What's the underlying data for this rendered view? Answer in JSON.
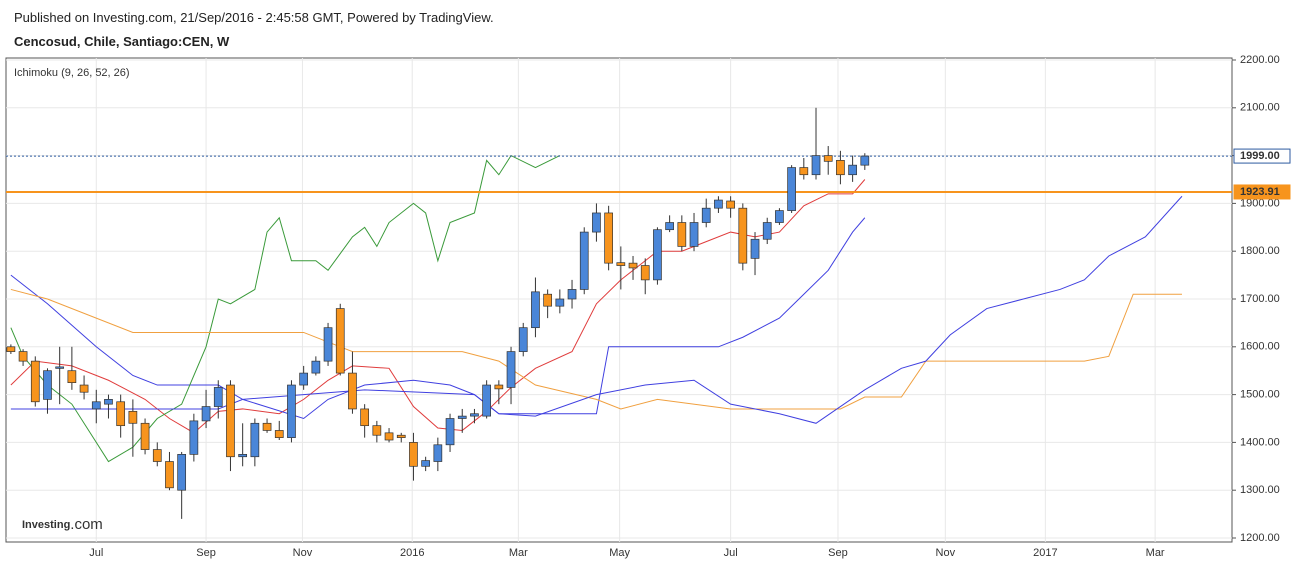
{
  "chart_data": {
    "type": "candlestick",
    "published": "Published on Investing.com, 21/Sep/2016 - 2:45:58 GMT, Powered by TradingView.",
    "title": "Cencosud, Chile, Santiago:CEN, W",
    "indicator": "Ichimoku (9, 26, 52, 26)",
    "logo": "Investing",
    "logo_suffix": ".com",
    "up_color": "#4a86d8",
    "down_color": "#f7941d",
    "grid": true,
    "xlim": [
      -0.4,
      100.1
    ],
    "xticks": [
      {
        "value": 7,
        "label": "Jul"
      },
      {
        "value": 16,
        "label": "Sep"
      },
      {
        "value": 23.9,
        "label": "Nov"
      },
      {
        "value": 32.9,
        "label": "2016"
      },
      {
        "value": 41.6,
        "label": "Mar"
      },
      {
        "value": 49.9,
        "label": "May"
      },
      {
        "value": 59,
        "label": "Jul"
      },
      {
        "value": 67.8,
        "label": "Sep"
      },
      {
        "value": 76.6,
        "label": "Nov"
      },
      {
        "value": 84.8,
        "label": "2017"
      },
      {
        "value": 93.8,
        "label": "Mar"
      }
    ],
    "ylim": [
      1200,
      2200
    ],
    "yticks": [
      {
        "value": 1200,
        "label": "1200.00"
      },
      {
        "value": 1300,
        "label": "1300.00"
      },
      {
        "value": 1400,
        "label": "1400.00"
      },
      {
        "value": 1500,
        "label": "1500.00"
      },
      {
        "value": 1600,
        "label": "1600.00"
      },
      {
        "value": 1700,
        "label": "1700.00"
      },
      {
        "value": 1800,
        "label": "1800.00"
      },
      {
        "value": 1900,
        "label": "1900.00"
      },
      {
        "value": 2000,
        "label": "2000.00"
      },
      {
        "value": 2100,
        "label": "2100.00"
      },
      {
        "value": 2200,
        "label": "2200.00"
      }
    ],
    "x": [
      0,
      1,
      2,
      3,
      4,
      5,
      6,
      7,
      8,
      9,
      10,
      11,
      12,
      13,
      14,
      15,
      16,
      17,
      18,
      19,
      20,
      21,
      22,
      23,
      24,
      25,
      26,
      27,
      28,
      29,
      30,
      31,
      32,
      33,
      34,
      35,
      36,
      37,
      38,
      39,
      40,
      41,
      42,
      43,
      44,
      45,
      46,
      47,
      48,
      49,
      50,
      51,
      52,
      53,
      54,
      55,
      56,
      57,
      58,
      59,
      60,
      61,
      62,
      63,
      64,
      65,
      66,
      67,
      68,
      69,
      70
    ],
    "open": [
      1600,
      1590,
      1570,
      1490,
      1555,
      1550,
      1520,
      1470,
      1480,
      1485,
      1465,
      1440,
      1385,
      1360,
      1300,
      1375,
      1445,
      1475,
      1520,
      1370,
      1370,
      1440,
      1425,
      1410,
      1520,
      1545,
      1570,
      1680,
      1545,
      1470,
      1435,
      1420,
      1415,
      1400,
      1350,
      1360,
      1395,
      1450,
      1455,
      1455,
      1520,
      1515,
      1590,
      1640,
      1710,
      1685,
      1700,
      1720,
      1840,
      1880,
      1776,
      1775,
      1770,
      1740,
      1845,
      1860,
      1810,
      1860,
      1890,
      1905,
      1890,
      1785,
      1825,
      1860,
      1885,
      1975,
      1960,
      2000,
      1990,
      1960,
      1980
    ],
    "high": [
      1605,
      1595,
      1580,
      1555,
      1600,
      1600,
      1540,
      1510,
      1500,
      1500,
      1490,
      1450,
      1400,
      1380,
      1380,
      1460,
      1510,
      1530,
      1530,
      1440,
      1450,
      1450,
      1445,
      1530,
      1560,
      1580,
      1650,
      1690,
      1590,
      1480,
      1445,
      1430,
      1420,
      1420,
      1370,
      1410,
      1460,
      1470,
      1470,
      1530,
      1530,
      1600,
      1650,
      1745,
      1720,
      1720,
      1740,
      1850,
      1900,
      1895,
      1810,
      1790,
      1785,
      1850,
      1875,
      1875,
      1880,
      1910,
      1915,
      1915,
      1900,
      1840,
      1870,
      1890,
      1980,
      1995,
      2100,
      2020,
      2010,
      2000,
      2005
    ],
    "low": [
      1585,
      1560,
      1475,
      1460,
      1480,
      1510,
      1490,
      1440,
      1450,
      1410,
      1370,
      1375,
      1350,
      1300,
      1240,
      1360,
      1430,
      1450,
      1340,
      1350,
      1350,
      1420,
      1405,
      1400,
      1510,
      1540,
      1560,
      1540,
      1460,
      1410,
      1400,
      1400,
      1400,
      1320,
      1340,
      1340,
      1380,
      1420,
      1440,
      1450,
      1480,
      1480,
      1580,
      1620,
      1660,
      1670,
      1680,
      1710,
      1820,
      1760,
      1720,
      1740,
      1710,
      1730,
      1840,
      1800,
      1800,
      1850,
      1880,
      1870,
      1760,
      1750,
      1815,
      1855,
      1880,
      1950,
      1950,
      1960,
      1940,
      1945,
      1970
    ],
    "close": [
      1590,
      1570,
      1485,
      1550,
      1558,
      1525,
      1505,
      1485,
      1490,
      1435,
      1440,
      1385,
      1360,
      1305,
      1375,
      1445,
      1475,
      1515,
      1370,
      1375,
      1440,
      1425,
      1410,
      1520,
      1545,
      1570,
      1640,
      1545,
      1470,
      1435,
      1415,
      1405,
      1410,
      1350,
      1362,
      1395,
      1450,
      1455,
      1460,
      1520,
      1512,
      1590,
      1640,
      1715,
      1685,
      1700,
      1720,
      1840,
      1880,
      1775,
      1770,
      1765,
      1740,
      1845,
      1860,
      1810,
      1860,
      1890,
      1907,
      1890,
      1775,
      1825,
      1860,
      1885,
      1975,
      1960,
      2000,
      1988,
      1960,
      1980,
      1999
    ],
    "lines": [
      {
        "color": "#e03c3c",
        "x": [
          0,
          2,
          5,
          8,
          11,
          13,
          15,
          17,
          19,
          22,
          24,
          26,
          28,
          31,
          33,
          35,
          37,
          39,
          41,
          43,
          46,
          48,
          50,
          53,
          55,
          57,
          59,
          61,
          63,
          65,
          67,
          69,
          70
        ],
        "values": [
          1520,
          1570,
          1560,
          1530,
          1490,
          1450,
          1420,
          1465,
          1470,
          1460,
          1490,
          1530,
          1560,
          1555,
          1475,
          1430,
          1425,
          1465,
          1515,
          1555,
          1590,
          1690,
          1740,
          1800,
          1800,
          1820,
          1840,
          1830,
          1840,
          1895,
          1920,
          1920,
          1950
        ]
      },
      {
        "color": "#4040e0",
        "x": [
          0,
          3,
          7,
          10,
          12,
          17,
          19,
          24,
          26,
          29,
          33,
          36,
          38,
          40,
          48,
          49,
          58,
          60,
          63,
          65,
          67,
          69,
          70
        ],
        "values": [
          1750,
          1690,
          1600,
          1540,
          1520,
          1520,
          1490,
          1450,
          1490,
          1520,
          1530,
          1520,
          1500,
          1460,
          1460,
          1600,
          1600,
          1620,
          1660,
          1710,
          1760,
          1840,
          1870
        ]
      },
      {
        "color": "#3a9a3a",
        "x": [
          0,
          1,
          3,
          5,
          7,
          8,
          10,
          12,
          14,
          16,
          17,
          18,
          20,
          21,
          22,
          23,
          25,
          26,
          28,
          29,
          30,
          31,
          33,
          34,
          35,
          36,
          38,
          39,
          40,
          41,
          43,
          45
        ],
        "values": [
          1640,
          1580,
          1520,
          1480,
          1400,
          1360,
          1390,
          1450,
          1480,
          1600,
          1700,
          1690,
          1720,
          1840,
          1870,
          1780,
          1780,
          1760,
          1830,
          1850,
          1810,
          1860,
          1900,
          1880,
          1780,
          1860,
          1880,
          1990,
          1960,
          2000,
          1975,
          2000
        ]
      },
      {
        "color": "#f0a040",
        "x": [
          0,
          3,
          10,
          24,
          28,
          37,
          40,
          43,
          48,
          50,
          53,
          59,
          68,
          70,
          73,
          75,
          88,
          90,
          92,
          96
        ],
        "values": [
          1720,
          1700,
          1630,
          1630,
          1590,
          1590,
          1570,
          1520,
          1490,
          1470,
          1490,
          1470,
          1470,
          1495,
          1495,
          1570,
          1570,
          1580,
          1710,
          1710
        ]
      },
      {
        "color": "#4040e0",
        "x": [
          0,
          17,
          19,
          24,
          29,
          38,
          40,
          43,
          48,
          52,
          56,
          59,
          63,
          66,
          70,
          73,
          75,
          77,
          80,
          83,
          86,
          88,
          90,
          93,
          96
        ],
        "values": [
          1470,
          1470,
          1490,
          1500,
          1510,
          1500,
          1460,
          1455,
          1500,
          1520,
          1530,
          1480,
          1460,
          1440,
          1510,
          1555,
          1570,
          1625,
          1680,
          1700,
          1720,
          1740,
          1790,
          1830,
          1915
        ]
      }
    ],
    "price_lines": [
      {
        "value": 1999,
        "label": "1999.00",
        "color": "#2c5aa0"
      },
      {
        "value": 1923.91,
        "label": "1923.91",
        "color": "#f7941d"
      }
    ]
  }
}
